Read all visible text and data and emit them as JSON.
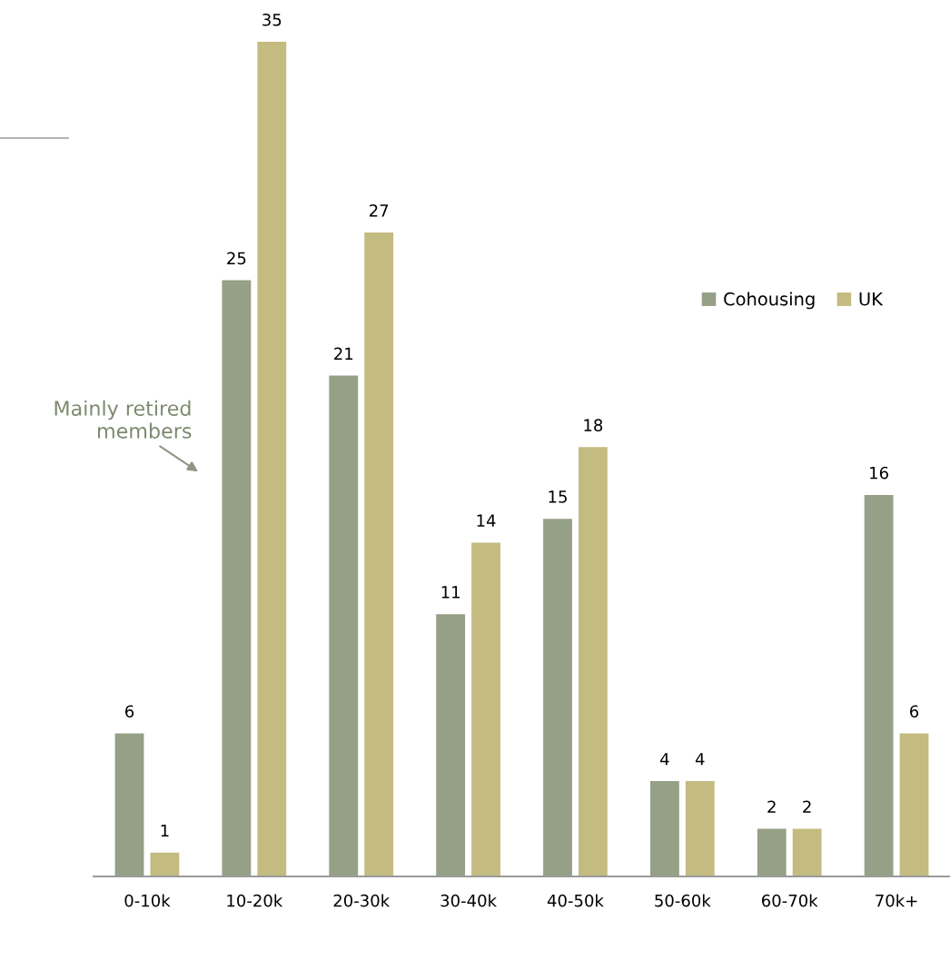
{
  "chart_data": {
    "type": "bar",
    "categories": [
      "0-10k",
      "10-20k",
      "20-30k",
      "30-40k",
      "40-50k",
      "50-60k",
      "60-70k",
      "70k+"
    ],
    "series": [
      {
        "name": "Cohousing",
        "color": "#95a086",
        "values": [
          6,
          25,
          21,
          11,
          15,
          4,
          2,
          16
        ]
      },
      {
        "name": "UK",
        "color": "#c3bb80",
        "values": [
          1,
          35,
          27,
          14,
          18,
          4,
          2,
          6
        ]
      }
    ],
    "ylim": [
      0,
      35
    ],
    "tick_labels": "x",
    "data_labels": true,
    "legend": "right",
    "grid": false,
    "annotations": [
      "Mainly retired members"
    ]
  }
}
